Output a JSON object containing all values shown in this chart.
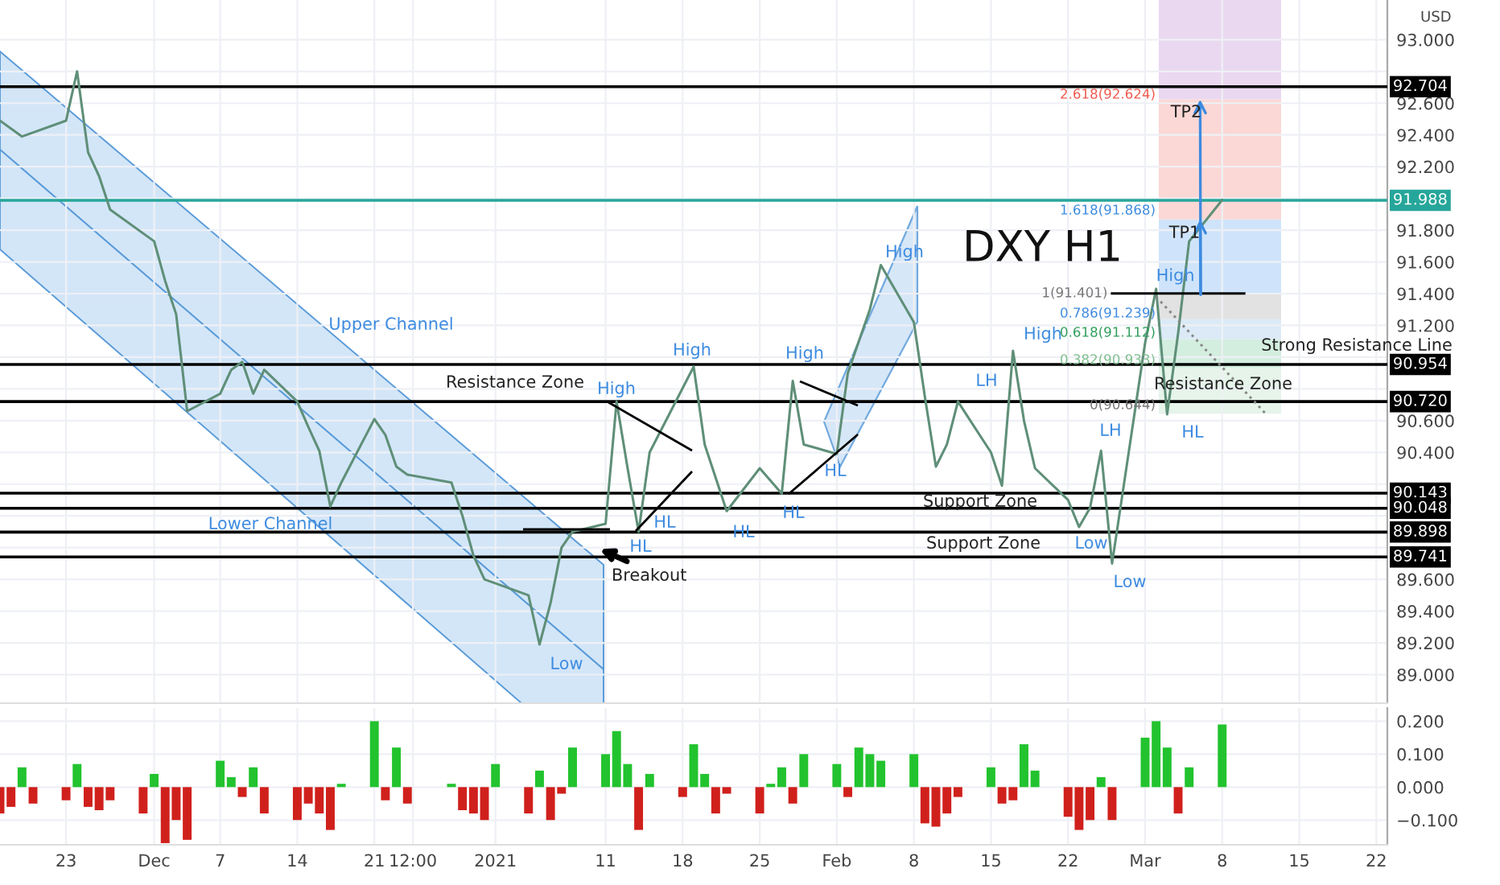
{
  "chart_data": [
    {
      "type": "line",
      "title": "DXY H1",
      "ylabel": "USD",
      "x": [
        "2020-11-17",
        "2020-11-19",
        "2020-11-23",
        "2020-11-24",
        "2020-11-25",
        "2020-11-26",
        "2020-11-27",
        "2020-12-01",
        "2020-12-02",
        "2020-12-03",
        "2020-12-04",
        "2020-12-07",
        "2020-12-08",
        "2020-12-09",
        "2020-12-10",
        "2020-12-11",
        "2020-12-14",
        "2020-12-15",
        "2020-12-16",
        "2020-12-17",
        "2020-12-18",
        "2020-12-21",
        "2020-12-22",
        "2020-12-23",
        "2020-12-24",
        "2020-12-28",
        "2020-12-29",
        "2020-12-30",
        "2020-12-31",
        "2021-01-04",
        "2021-01-05",
        "2021-01-06",
        "2021-01-07",
        "2021-01-08",
        "2021-01-11",
        "2021-01-12",
        "2021-01-13",
        "2021-01-14",
        "2021-01-15",
        "2021-01-19",
        "2021-01-20",
        "2021-01-22",
        "2021-01-25",
        "2021-01-27",
        "2021-01-28",
        "2021-01-29",
        "2021-02-01",
        "2021-02-02",
        "2021-02-03",
        "2021-02-04",
        "2021-02-05",
        "2021-02-08",
        "2021-02-09",
        "2021-02-10",
        "2021-02-11",
        "2021-02-12",
        "2021-02-15",
        "2021-02-16",
        "2021-02-17",
        "2021-02-18",
        "2021-02-19",
        "2021-02-22",
        "2021-02-23",
        "2021-02-24",
        "2021-02-25",
        "2021-02-26",
        "2021-03-01",
        "2021-03-02",
        "2021-03-03",
        "2021-03-04",
        "2021-03-05",
        "2021-03-08"
      ],
      "series": [
        {
          "color": "#5f8f78",
          "values": [
            92.49,
            92.39,
            92.49,
            92.8,
            92.29,
            92.14,
            91.93,
            91.73,
            91.48,
            91.27,
            90.66,
            90.77,
            90.92,
            90.97,
            90.77,
            90.92,
            90.72,
            90.56,
            90.41,
            90.06,
            90.21,
            90.61,
            90.51,
            90.31,
            90.26,
            90.21,
            90.0,
            89.75,
            89.6,
            89.5,
            89.19,
            89.45,
            89.8,
            89.9,
            89.95,
            90.72,
            90.3,
            89.9,
            90.4,
            90.94,
            90.45,
            90.03,
            90.3,
            90.14,
            90.85,
            90.45,
            90.39,
            90.9,
            91.1,
            91.3,
            91.58,
            91.22,
            90.75,
            90.31,
            90.45,
            90.72,
            90.4,
            90.19,
            91.04,
            90.6,
            90.3,
            90.1,
            89.93,
            90.05,
            90.41,
            89.7,
            91.09,
            91.43,
            90.64,
            91.15,
            91.73,
            91.99
          ]
        },
        {
          "color": "#000000",
          "x": [
            "2021-02-26",
            "2021-03-10"
          ],
          "values": [
            91.401,
            91.401
          ]
        },
        {
          "color": "#888888",
          "line_style": "dotted",
          "x": [
            "2021-03-02",
            "2021-03-12"
          ],
          "values": [
            91.38,
            90.64
          ]
        }
      ],
      "xlim": [
        "2020-11-17",
        "2021-03-23"
      ],
      "xticks": [
        {
          "value": "2020-11-23",
          "label": null
        },
        {
          "value": "2020-12-01",
          "label": null
        },
        {
          "value": "2020-12-07",
          "label": null
        },
        {
          "value": "2020-12-14",
          "label": null
        },
        {
          "value": "2020-12-21",
          "label": null
        },
        {
          "value": "2020-12-24T12:00",
          "label": null
        },
        {
          "value": "2021-01-01",
          "label": null
        },
        {
          "value": "2021-01-11",
          "label": null
        },
        {
          "value": "2021-01-18",
          "label": null
        },
        {
          "value": "2021-01-25",
          "label": null
        },
        {
          "value": "2021-02-01",
          "label": null
        },
        {
          "value": "2021-02-08",
          "label": null
        },
        {
          "value": "2021-02-15",
          "label": null
        },
        {
          "value": "2021-02-22",
          "label": null
        },
        {
          "value": "2021-03-01",
          "label": null
        },
        {
          "value": "2021-03-08",
          "label": null
        },
        {
          "value": "2021-03-15",
          "label": null
        },
        {
          "value": "2021-03-22",
          "label": null
        }
      ],
      "ylim": [
        88.82,
        93.25
      ],
      "yticks": [
        {
          "value": 89.0,
          "label": "89.000"
        },
        {
          "value": 89.2,
          "label": "89.200"
        },
        {
          "value": 89.4,
          "label": "89.400"
        },
        {
          "value": 89.6,
          "label": "89.600"
        },
        {
          "value": 89.8,
          "label": null
        },
        {
          "value": 90.0,
          "label": null
        },
        {
          "value": 90.2,
          "label": null
        },
        {
          "value": 90.4,
          "label": "90.400"
        },
        {
          "value": 90.6,
          "label": "90.600"
        },
        {
          "value": 90.8,
          "label": null
        },
        {
          "value": 91.0,
          "label": null
        },
        {
          "value": 91.2,
          "label": "91.200"
        },
        {
          "value": 91.4,
          "label": "91.400"
        },
        {
          "value": 91.6,
          "label": "91.600"
        },
        {
          "value": 91.8,
          "label": "91.800"
        },
        {
          "value": 92.0,
          "label": null
        },
        {
          "value": 92.2,
          "label": "92.200"
        },
        {
          "value": 92.4,
          "label": "92.400"
        },
        {
          "value": 92.6,
          "label": "92.600"
        },
        {
          "value": 92.8,
          "label": null
        },
        {
          "value": 93.0,
          "label": "93.000"
        }
      ],
      "tick_labels": "y",
      "grid": true,
      "ref_lines": [
        {
          "axis": "y",
          "value": 92.704,
          "label": "92.704",
          "color": "#000000"
        },
        {
          "axis": "y",
          "value": 91.988,
          "label": "91.988",
          "color": "#26a69a"
        },
        {
          "axis": "y",
          "value": 90.954,
          "label": "90.954",
          "color": "#000000"
        },
        {
          "axis": "y",
          "value": 90.72,
          "label": "90.720",
          "color": "#000000"
        },
        {
          "axis": "y",
          "value": 90.143,
          "label": "90.143",
          "color": "#000000"
        },
        {
          "axis": "y",
          "value": 90.048,
          "label": "90.048",
          "color": "#000000"
        },
        {
          "axis": "y",
          "value": 89.898,
          "label": "89.898",
          "color": "#000000"
        },
        {
          "axis": "y",
          "value": 89.741,
          "label": "89.741",
          "color": "#000000"
        }
      ],
      "bands": [
        {
          "axis": "y",
          "from": 90.644,
          "to": 90.933,
          "color": "#e6f4ea"
        },
        {
          "axis": "y",
          "from": 90.933,
          "to": 91.112,
          "color": "#d3eedf"
        },
        {
          "axis": "y",
          "from": 91.112,
          "to": 91.239,
          "color": "#dbeaf6"
        },
        {
          "axis": "y",
          "from": 91.239,
          "to": 91.401,
          "color": "#e2e2e2"
        },
        {
          "axis": "y",
          "from": 91.401,
          "to": 91.868,
          "color": "#cfe4fa"
        },
        {
          "axis": "y",
          "from": 91.868,
          "to": 92.624,
          "color": "#fbd8d5"
        },
        {
          "axis": "y",
          "from": 92.624,
          "to": 93.25,
          "color": "#ead8f0"
        }
      ],
      "annotations": [
        "Upper Channel",
        "Lower Channel",
        "Resistance Zone",
        "High",
        "High",
        "High",
        "High",
        "High",
        {
          "text": "High",
          "x": "2021-03-02",
          "y": 91.43
        },
        "HL",
        "HL",
        "HL",
        "HL",
        "HL",
        "LH",
        "LH",
        "HL",
        "Low",
        "Low",
        "Low",
        "Breakout",
        "Support Zone",
        "Support Zone",
        "Strong Resistance Line",
        "Resistance Zone",
        {
          "text": "TP1",
          "x": "2021-03-06",
          "y": 91.868
        },
        {
          "text": "TP2",
          "x": "2021-03-06",
          "y": 92.624
        },
        "2.618(92.624)",
        "1.618(91.868)",
        {
          "text": "1(91.401)",
          "x": "2021-02-26",
          "y": 91.401
        },
        "0.786(91.239)",
        "0.618(91.112)",
        "0.382(90.933)",
        "0(90.644)"
      ]
    },
    {
      "type": "bar",
      "x": [
        "2020-11-17",
        "2020-11-18",
        "2020-11-19",
        "2020-11-20",
        "2020-11-23",
        "2020-11-24",
        "2020-11-25",
        "2020-11-26",
        "2020-11-27",
        "2020-11-30",
        "2020-12-01",
        "2020-12-02",
        "2020-12-03",
        "2020-12-04",
        "2020-12-07",
        "2020-12-08",
        "2020-12-09",
        "2020-12-10",
        "2020-12-11",
        "2020-12-14",
        "2020-12-15",
        "2020-12-16",
        "2020-12-17",
        "2020-12-18",
        "2020-12-21",
        "2020-12-22",
        "2020-12-23",
        "2020-12-24",
        "2020-12-28",
        "2020-12-29",
        "2020-12-30",
        "2020-12-31",
        "2021-01-01",
        "2021-01-04",
        "2021-01-05",
        "2021-01-06",
        "2021-01-07",
        "2021-01-08",
        "2021-01-11",
        "2021-01-12",
        "2021-01-13",
        "2021-01-14",
        "2021-01-15",
        "2021-01-18",
        "2021-01-19",
        "2021-01-20",
        "2021-01-21",
        "2021-01-22",
        "2021-01-25",
        "2021-01-26",
        "2021-01-27",
        "2021-01-28",
        "2021-01-29",
        "2021-02-01",
        "2021-02-02",
        "2021-02-03",
        "2021-02-04",
        "2021-02-05",
        "2021-02-08",
        "2021-02-09",
        "2021-02-10",
        "2021-02-11",
        "2021-02-12",
        "2021-02-15",
        "2021-02-16",
        "2021-02-17",
        "2021-02-18",
        "2021-02-19",
        "2021-02-22",
        "2021-02-23",
        "2021-02-24",
        "2021-02-25",
        "2021-02-26",
        "2021-03-01",
        "2021-03-02",
        "2021-03-03",
        "2021-03-04",
        "2021-03-05",
        "2021-03-08"
      ],
      "values": [
        -0.08,
        -0.06,
        0.06,
        -0.05,
        -0.04,
        0.07,
        -0.06,
        -0.07,
        -0.04,
        -0.08,
        0.04,
        -0.17,
        -0.1,
        -0.16,
        0.08,
        0.03,
        -0.03,
        0.06,
        -0.08,
        -0.1,
        -0.05,
        -0.08,
        -0.13,
        0.01,
        0.2,
        -0.04,
        0.12,
        -0.05,
        0.01,
        -0.07,
        -0.08,
        -0.1,
        0.07,
        -0.08,
        0.05,
        -0.1,
        -0.02,
        0.12,
        0.1,
        0.17,
        0.07,
        -0.13,
        0.04,
        -0.03,
        0.13,
        0.04,
        -0.08,
        -0.02,
        -0.08,
        0.01,
        0.06,
        -0.05,
        0.1,
        0.07,
        -0.03,
        0.12,
        0.1,
        0.08,
        0.1,
        -0.11,
        -0.12,
        -0.08,
        -0.03,
        0.06,
        -0.05,
        -0.04,
        0.13,
        0.05,
        -0.09,
        -0.13,
        -0.1,
        0.03,
        -0.1,
        0.15,
        0.2,
        0.12,
        -0.08,
        0.06,
        0.19
      ],
      "colors": [
        "#d0201c",
        "#d0201c",
        "#22c32e",
        "#d0201c",
        "#d0201c",
        "#22c32e",
        "#d0201c",
        "#d0201c",
        "#d0201c",
        "#d0201c",
        "#22c32e",
        "#d0201c",
        "#d0201c",
        "#d0201c",
        "#22c32e",
        "#22c32e",
        "#d0201c",
        "#22c32e",
        "#d0201c",
        "#d0201c",
        "#d0201c",
        "#d0201c",
        "#d0201c",
        "#22c32e",
        "#22c32e",
        "#d0201c",
        "#22c32e",
        "#d0201c",
        "#22c32e",
        "#d0201c",
        "#d0201c",
        "#d0201c",
        "#22c32e",
        "#d0201c",
        "#22c32e",
        "#d0201c",
        "#d0201c",
        "#22c32e",
        "#22c32e",
        "#22c32e",
        "#22c32e",
        "#d0201c",
        "#22c32e",
        "#d0201c",
        "#22c32e",
        "#22c32e",
        "#d0201c",
        "#d0201c",
        "#d0201c",
        "#22c32e",
        "#22c32e",
        "#d0201c",
        "#22c32e",
        "#22c32e",
        "#d0201c",
        "#22c32e",
        "#22c32e",
        "#22c32e",
        "#22c32e",
        "#d0201c",
        "#d0201c",
        "#d0201c",
        "#d0201c",
        "#22c32e",
        "#d0201c",
        "#d0201c",
        "#22c32e",
        "#22c32e",
        "#d0201c",
        "#d0201c",
        "#d0201c",
        "#22c32e",
        "#d0201c",
        "#22c32e",
        "#22c32e",
        "#22c32e",
        "#d0201c",
        "#22c32e",
        "#22c32e"
      ],
      "xlim": [
        "2020-11-17",
        "2021-03-23"
      ],
      "xticks": [
        {
          "value": "2020-11-23",
          "label": "23"
        },
        {
          "value": "2020-12-01",
          "label": "Dec"
        },
        {
          "value": "2020-12-07",
          "label": "7"
        },
        {
          "value": "2020-12-14",
          "label": "14"
        },
        {
          "value": "2020-12-21",
          "label": "21"
        },
        {
          "value": "2020-12-24T12:00",
          "label": "12:00"
        },
        {
          "value": "2021-01-01",
          "label": "2021"
        },
        {
          "value": "2021-01-11",
          "label": "11"
        },
        {
          "value": "2021-01-18",
          "label": "18"
        },
        {
          "value": "2021-01-25",
          "label": "25"
        },
        {
          "value": "2021-02-01",
          "label": "Feb"
        },
        {
          "value": "2021-02-08",
          "label": "8"
        },
        {
          "value": "2021-02-15",
          "label": "15"
        },
        {
          "value": "2021-02-22",
          "label": "22"
        },
        {
          "value": "2021-03-01",
          "label": "Mar"
        },
        {
          "value": "2021-03-08",
          "label": "8"
        },
        {
          "value": "2021-03-15",
          "label": "15"
        },
        {
          "value": "2021-03-22",
          "label": "22"
        }
      ],
      "ylim": [
        -0.175,
        0.24
      ],
      "yticks": [
        {
          "value": -0.1,
          "label": "−0.100"
        },
        {
          "value": 0.0,
          "label": "0.000"
        },
        {
          "value": 0.1,
          "label": "0.100"
        },
        {
          "value": 0.2,
          "label": "0.200"
        }
      ],
      "grid": true
    }
  ]
}
